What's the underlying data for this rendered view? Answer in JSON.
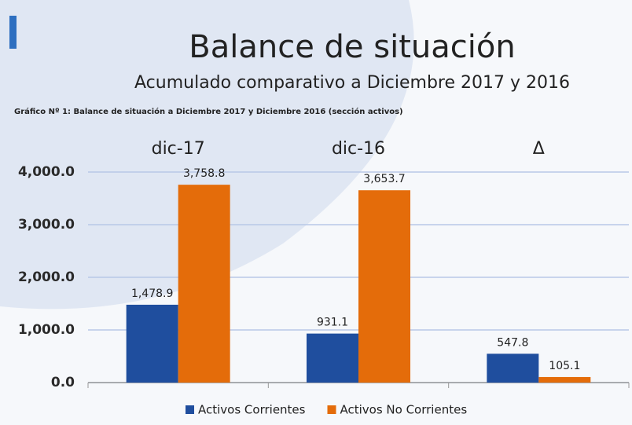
{
  "chart_data": {
    "type": "bar",
    "title": "Balance de situación",
    "subtitle": "Acumulado comparativo a Diciembre 2017 y 2016",
    "caption": "Gráfico Nº 1: Balance de situación a  Diciembre 2017 y  Diciembre 2016 (sección activos)",
    "categories": [
      "dic-17",
      "dic-16",
      "Δ"
    ],
    "series": [
      {
        "name": "Activos Corrientes",
        "color": "#1f4e9e",
        "values": [
          1478.9,
          931.1,
          547.8
        ],
        "value_labels": [
          "1,478.9",
          "931.1",
          "547.8"
        ]
      },
      {
        "name": "Activos No Corrientes",
        "color": "#e46c0a",
        "values": [
          3758.8,
          3653.7,
          105.1
        ],
        "value_labels": [
          "3,758.8",
          "3,653.7",
          "105.1"
        ]
      }
    ],
    "ylim": [
      0,
      4000
    ],
    "yticks": [
      {
        "value": 0,
        "label": "0.0"
      },
      {
        "value": 1000,
        "label": "1,000.0"
      },
      {
        "value": 2000,
        "label": "2,000.0"
      },
      {
        "value": 3000,
        "label": "3,000.0"
      },
      {
        "value": 4000,
        "label": "4,000.0"
      }
    ],
    "grid": true,
    "legend": "bottom"
  }
}
